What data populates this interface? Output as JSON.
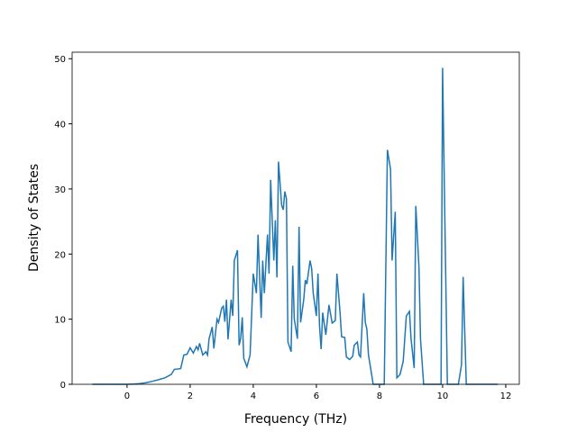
{
  "chart_data": {
    "type": "line",
    "xlabel": "Frequency (THz)",
    "ylabel": "Density of States",
    "xlim": [
      -1.74,
      12.43
    ],
    "ylim": [
      0,
      51
    ],
    "xticks": [
      0,
      2,
      4,
      6,
      8,
      10,
      12
    ],
    "yticks": [
      0,
      10,
      20,
      30,
      40,
      50
    ],
    "series": [
      {
        "color": "#1f77b4",
        "x": [
          -1.1,
          0,
          0.2,
          0.4,
          0.6,
          0.8,
          1.0,
          1.2,
          1.4,
          1.5,
          1.7,
          1.8,
          1.9,
          2.0,
          2.1,
          2.2,
          2.25,
          2.3,
          2.4,
          2.5,
          2.55,
          2.6,
          2.7,
          2.75,
          2.85,
          2.9,
          3.0,
          3.05,
          3.1,
          3.15,
          3.2,
          3.3,
          3.35,
          3.4,
          3.5,
          3.55,
          3.6,
          3.65,
          3.7,
          3.8,
          3.9,
          4.0,
          4.1,
          4.15,
          4.25,
          4.3,
          4.35,
          4.45,
          4.5,
          4.55,
          4.65,
          4.7,
          4.75,
          4.8,
          4.9,
          4.95,
          5.0,
          5.05,
          5.1,
          5.2,
          5.25,
          5.3,
          5.4,
          5.45,
          5.5,
          5.6,
          5.65,
          5.7,
          5.8,
          5.85,
          5.9,
          6.0,
          6.05,
          6.1,
          6.15,
          6.2,
          6.3,
          6.4,
          6.5,
          6.6,
          6.65,
          6.75,
          6.8,
          6.9,
          6.95,
          7.05,
          7.15,
          7.2,
          7.3,
          7.35,
          7.4,
          7.5,
          7.55,
          7.6,
          7.65,
          7.75,
          7.8,
          8.15,
          8.25,
          8.35,
          8.4,
          8.5,
          8.55,
          8.65,
          8.75,
          8.85,
          8.95,
          9.0,
          9.1,
          9.15,
          9.25,
          9.3,
          9.4,
          9.95,
          10.0,
          10.15,
          10.5,
          10.6,
          10.65,
          10.75,
          11.75
        ],
        "values": [
          0,
          0,
          0.03,
          0.1,
          0.25,
          0.45,
          0.7,
          1.0,
          1.5,
          2.3,
          2.4,
          4.5,
          4.6,
          5.6,
          4.8,
          5.8,
          5.3,
          6.3,
          4.5,
          5.0,
          4.5,
          7.0,
          8.8,
          5.5,
          10,
          9.5,
          11.7,
          12.0,
          9.6,
          13,
          6.9,
          13,
          10.5,
          19,
          20.6,
          6.0,
          7,
          10.3,
          4.0,
          2.7,
          4.5,
          17,
          14,
          23,
          10.2,
          19,
          14,
          23,
          17,
          31.4,
          19,
          25.2,
          16.4,
          34.2,
          27.5,
          26.8,
          29.6,
          28.5,
          6.5,
          5.0,
          18.2,
          10,
          7,
          24.2,
          9.5,
          13,
          16,
          15.4,
          19,
          17.8,
          14,
          10.5,
          17,
          9,
          5.4,
          11,
          7.6,
          12.2,
          9.4,
          9.8,
          17,
          11,
          7.3,
          7.2,
          4.2,
          3.8,
          4.3,
          6,
          6.5,
          4.5,
          4.2,
          14,
          9.5,
          8.5,
          4.5,
          1.5,
          0,
          0,
          36,
          33,
          19,
          26.5,
          1,
          1.5,
          3.5,
          10.5,
          11.2,
          7,
          2.5,
          27.4,
          18,
          7,
          0,
          0,
          48.6,
          0,
          0,
          3,
          16.5,
          0,
          0
        ]
      }
    ]
  }
}
